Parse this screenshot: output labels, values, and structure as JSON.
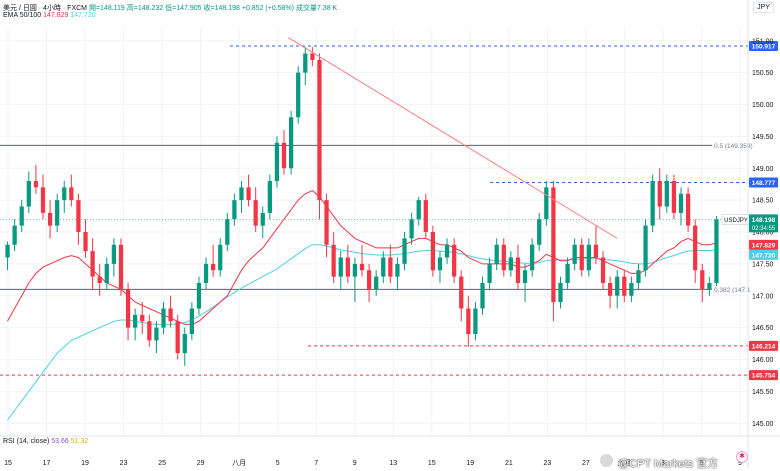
{
  "header": {
    "symbol_line_parts": {
      "symbol": "美元 / 日圓 · 4小時 · FXCM",
      "open": "開=148.119",
      "high": "高=148.232",
      "low": "低=147.905",
      "close": "收=148.198",
      "change": "+0.852 (+0.58%)",
      "volume": "成交量7.38 K"
    },
    "ema_line": {
      "label": "EMA 50/100",
      "v1": "147.829",
      "v2": "147.720"
    },
    "currency_button": "JPY"
  },
  "rsi": {
    "label": "RSI (14, close)",
    "v1": "53.66",
    "v2": "51.32"
  },
  "watermark": "@CPT Markets 官方",
  "tv_badge": "✱",
  "colors": {
    "up": "#089981",
    "down": "#f23645",
    "ema50": "#f23645",
    "ema100": "#4dd0e1",
    "trendline": "#f77c80",
    "level_blue": "#2962ff",
    "level_red": "#f23645",
    "fib": "#787b86",
    "current_price_bg": "#089981"
  },
  "chart_data": {
    "type": "candlestick",
    "y_axis": {
      "range": [
        144.8,
        151.2
      ],
      "ticks": [
        145.0,
        145.5,
        146.0,
        146.5,
        147.0,
        147.5,
        148.0,
        148.5,
        149.0,
        149.5,
        150.0,
        150.5,
        151.0
      ],
      "tick_labels": [
        "145.00",
        "145.50",
        "146.00",
        "146.50",
        "147.00",
        "147.50",
        "148.00",
        "148.50",
        "149.00",
        "149.50",
        "150.00",
        "150.50",
        "151.00"
      ]
    },
    "x_axis": {
      "labels": [
        "15",
        "17",
        "19",
        "23",
        "25",
        "29",
        "八月",
        "5",
        "7",
        "9",
        "13",
        "15",
        "19",
        "21",
        "23",
        "27",
        "九月",
        "3",
        "5",
        "9"
      ]
    },
    "candles": [
      [
        147.6,
        147.85,
        147.4,
        147.8
      ],
      [
        147.8,
        148.2,
        147.7,
        148.1
      ],
      [
        148.1,
        148.5,
        148.0,
        148.4
      ],
      [
        148.4,
        148.95,
        148.3,
        148.8
      ],
      [
        148.8,
        149.05,
        148.6,
        148.7
      ],
      [
        148.7,
        148.9,
        148.2,
        148.3
      ],
      [
        148.3,
        148.5,
        147.9,
        148.1
      ],
      [
        148.1,
        148.6,
        148.0,
        148.5
      ],
      [
        148.5,
        148.8,
        148.3,
        148.7
      ],
      [
        148.7,
        148.9,
        148.4,
        148.5
      ],
      [
        148.5,
        148.6,
        147.8,
        148.0
      ],
      [
        148.0,
        148.2,
        147.6,
        147.7
      ],
      [
        147.7,
        147.9,
        147.1,
        147.3
      ],
      [
        147.3,
        147.5,
        147.0,
        147.2
      ],
      [
        147.2,
        147.6,
        147.1,
        147.5
      ],
      [
        147.5,
        147.9,
        147.3,
        147.8
      ],
      [
        147.8,
        147.9,
        147.0,
        147.1
      ],
      [
        147.1,
        147.2,
        146.3,
        146.5
      ],
      [
        146.5,
        146.8,
        146.3,
        146.7
      ],
      [
        146.7,
        146.9,
        146.4,
        146.6
      ],
      [
        146.6,
        146.7,
        146.2,
        146.3
      ],
      [
        146.3,
        146.6,
        146.1,
        146.5
      ],
      [
        146.5,
        146.9,
        146.4,
        146.8
      ],
      [
        146.8,
        147.0,
        146.5,
        146.6
      ],
      [
        146.6,
        146.7,
        146.0,
        146.1
      ],
      [
        146.1,
        146.5,
        145.9,
        146.4
      ],
      [
        146.4,
        146.9,
        146.3,
        146.8
      ],
      [
        146.8,
        147.3,
        146.7,
        147.2
      ],
      [
        147.2,
        147.6,
        147.1,
        147.5
      ],
      [
        147.5,
        147.8,
        147.3,
        147.4
      ],
      [
        147.4,
        147.9,
        147.3,
        147.8
      ],
      [
        147.8,
        148.3,
        147.7,
        148.2
      ],
      [
        148.2,
        148.6,
        148.1,
        148.5
      ],
      [
        148.5,
        148.8,
        148.3,
        148.7
      ],
      [
        148.7,
        148.9,
        148.4,
        148.5
      ],
      [
        148.5,
        148.7,
        148.0,
        148.1
      ],
      [
        148.1,
        148.4,
        147.9,
        148.3
      ],
      [
        148.3,
        148.9,
        148.2,
        148.8
      ],
      [
        148.8,
        149.5,
        148.7,
        149.4
      ],
      [
        149.4,
        149.6,
        148.9,
        149.0
      ],
      [
        149.0,
        149.9,
        148.9,
        149.8
      ],
      [
        149.8,
        150.6,
        149.7,
        150.5
      ],
      [
        150.5,
        150.9,
        150.3,
        150.8
      ],
      [
        150.8,
        150.9,
        150.6,
        150.7
      ],
      [
        150.7,
        150.8,
        148.2,
        148.5
      ],
      [
        148.5,
        148.6,
        147.6,
        147.8
      ],
      [
        147.8,
        148.0,
        147.2,
        147.3
      ],
      [
        147.3,
        147.7,
        147.1,
        147.6
      ],
      [
        147.6,
        147.8,
        147.2,
        147.3
      ],
      [
        147.3,
        147.6,
        146.9,
        147.5
      ],
      [
        147.5,
        147.8,
        147.3,
        147.4
      ],
      [
        147.4,
        147.5,
        146.9,
        147.1
      ],
      [
        147.1,
        147.4,
        147.0,
        147.3
      ],
      [
        147.3,
        147.7,
        147.2,
        147.6
      ],
      [
        147.6,
        147.8,
        147.2,
        147.3
      ],
      [
        147.3,
        147.6,
        147.1,
        147.5
      ],
      [
        147.5,
        148.0,
        147.4,
        147.9
      ],
      [
        147.9,
        148.3,
        147.8,
        148.2
      ],
      [
        148.2,
        148.55,
        148.1,
        148.5
      ],
      [
        148.5,
        148.6,
        147.9,
        148.0
      ],
      [
        148.0,
        148.1,
        147.3,
        147.4
      ],
      [
        147.4,
        147.7,
        147.2,
        147.6
      ],
      [
        147.6,
        147.9,
        147.5,
        147.8
      ],
      [
        147.8,
        147.9,
        147.2,
        147.3
      ],
      [
        147.3,
        147.4,
        146.6,
        146.8
      ],
      [
        146.8,
        147.0,
        146.2,
        146.4
      ],
      [
        146.4,
        146.9,
        146.3,
        146.8
      ],
      [
        146.8,
        147.3,
        146.7,
        147.2
      ],
      [
        147.2,
        147.6,
        147.1,
        147.5
      ],
      [
        147.5,
        147.9,
        147.4,
        147.8
      ],
      [
        147.8,
        147.9,
        147.3,
        147.4
      ],
      [
        147.4,
        147.7,
        147.3,
        147.6
      ],
      [
        147.6,
        147.8,
        147.1,
        147.2
      ],
      [
        147.2,
        147.5,
        146.9,
        147.4
      ],
      [
        147.4,
        147.9,
        147.3,
        147.8
      ],
      [
        147.8,
        148.3,
        147.7,
        148.2
      ],
      [
        148.2,
        148.8,
        148.1,
        148.7
      ],
      [
        148.7,
        148.8,
        146.6,
        146.9
      ],
      [
        146.9,
        147.3,
        146.8,
        147.2
      ],
      [
        147.2,
        147.6,
        147.1,
        147.5
      ],
      [
        147.5,
        147.9,
        147.4,
        147.8
      ],
      [
        147.8,
        147.9,
        147.3,
        147.4
      ],
      [
        147.4,
        147.9,
        147.3,
        147.8
      ],
      [
        147.8,
        148.1,
        147.5,
        147.6
      ],
      [
        147.6,
        147.7,
        147.1,
        147.2
      ],
      [
        147.2,
        147.3,
        146.8,
        147.0
      ],
      [
        147.0,
        147.4,
        146.8,
        147.3
      ],
      [
        147.3,
        147.4,
        146.9,
        147.0
      ],
      [
        147.0,
        147.3,
        146.9,
        147.2
      ],
      [
        147.2,
        147.5,
        147.1,
        147.4
      ],
      [
        147.4,
        148.2,
        147.3,
        148.1
      ],
      [
        148.1,
        148.9,
        148.0,
        148.8
      ],
      [
        148.8,
        149.0,
        148.2,
        148.4
      ],
      [
        148.4,
        148.9,
        148.3,
        148.8
      ],
      [
        148.8,
        148.9,
        148.2,
        148.3
      ],
      [
        148.3,
        148.7,
        148.1,
        148.6
      ],
      [
        148.6,
        148.7,
        148.0,
        148.1
      ],
      [
        148.1,
        148.2,
        147.2,
        147.4
      ],
      [
        147.4,
        147.5,
        146.9,
        147.1
      ],
      [
        147.1,
        147.3,
        147.0,
        147.2
      ],
      [
        147.2,
        148.25,
        147.15,
        148.2
      ]
    ],
    "ema50": [
      146.6,
      146.8,
      147.0,
      147.2,
      147.35,
      147.45,
      147.5,
      147.55,
      147.6,
      147.63,
      147.6,
      147.5,
      147.4,
      147.3,
      147.2,
      147.15,
      147.1,
      147.0,
      146.9,
      146.85,
      146.8,
      146.75,
      146.7,
      146.65,
      146.6,
      146.55,
      146.55,
      146.6,
      146.7,
      146.8,
      146.9,
      147.0,
      147.2,
      147.4,
      147.55,
      147.65,
      147.75,
      147.9,
      148.05,
      148.2,
      148.35,
      148.5,
      148.6,
      148.65,
      148.55,
      148.4,
      148.25,
      148.1,
      148.0,
      147.9,
      147.85,
      147.8,
      147.75,
      147.75,
      147.75,
      147.75,
      147.8,
      147.85,
      147.9,
      147.9,
      147.85,
      147.8,
      147.8,
      147.75,
      147.7,
      147.6,
      147.55,
      147.5,
      147.5,
      147.5,
      147.5,
      147.5,
      147.45,
      147.45,
      147.5,
      147.55,
      147.65,
      147.6,
      147.55,
      147.55,
      147.6,
      147.6,
      147.6,
      147.6,
      147.55,
      147.5,
      147.45,
      147.4,
      147.35,
      147.35,
      147.4,
      147.5,
      147.6,
      147.7,
      147.75,
      147.85,
      147.9,
      147.85,
      147.8,
      147.8,
      147.83
    ],
    "ema100": [
      145.05,
      145.2,
      145.35,
      145.5,
      145.65,
      145.8,
      145.95,
      146.1,
      146.2,
      146.3,
      146.35,
      146.4,
      146.45,
      146.5,
      146.55,
      146.6,
      146.62,
      146.62,
      146.6,
      146.58,
      146.56,
      146.55,
      146.55,
      146.55,
      146.56,
      146.58,
      146.62,
      146.68,
      146.75,
      146.82,
      146.9,
      146.98,
      147.05,
      147.12,
      147.18,
      147.24,
      147.3,
      147.36,
      147.42,
      147.5,
      147.58,
      147.66,
      147.74,
      147.8,
      147.8,
      147.78,
      147.75,
      147.72,
      147.7,
      147.68,
      147.66,
      147.65,
      147.64,
      147.64,
      147.64,
      147.65,
      147.66,
      147.68,
      147.7,
      147.71,
      147.71,
      147.7,
      147.69,
      147.68,
      147.66,
      147.63,
      147.6,
      147.58,
      147.56,
      147.55,
      147.54,
      147.53,
      147.52,
      147.51,
      147.51,
      147.52,
      147.55,
      147.56,
      147.56,
      147.56,
      147.57,
      147.58,
      147.58,
      147.58,
      147.57,
      147.56,
      147.55,
      147.53,
      147.51,
      147.5,
      147.5,
      147.52,
      147.56,
      147.6,
      147.63,
      147.67,
      147.7,
      147.71,
      147.71,
      147.71,
      147.72
    ],
    "levels": [
      {
        "price": 150.917,
        "label": "150.917",
        "kind": "blue-dashed"
      },
      {
        "price": 148.777,
        "label": "148.777",
        "kind": "blue-dashed"
      },
      {
        "price": 146.214,
        "label": "146.214",
        "kind": "red-dashed"
      },
      {
        "price": 145.754,
        "label": "145.754",
        "kind": "red-dashed"
      }
    ],
    "fib_lines": [
      {
        "price": 149.359,
        "label": "0.5 (149.359)"
      },
      {
        "price": 147.1,
        "label": "0.382 (147.1"
      }
    ],
    "trendline": {
      "from_bar": 41,
      "from_price": 151.05,
      "to_bar": 86,
      "to_price": 147.9
    },
    "current_price": {
      "price": 148.198,
      "symbol": "USDJPY",
      "value": "148.198",
      "countdown": "02:34:55"
    },
    "ema_price_tags": [
      {
        "price": 147.829,
        "label": "147.829",
        "series": "ema50"
      },
      {
        "price": 147.72,
        "label": "147.720",
        "series": "ema100"
      }
    ]
  }
}
